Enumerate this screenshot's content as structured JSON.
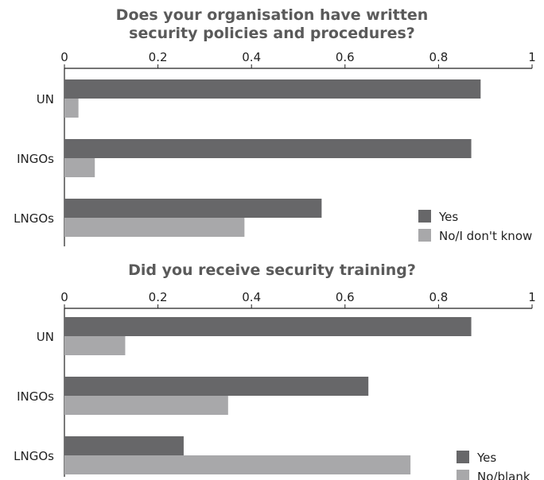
{
  "chart_data": [
    {
      "type": "bar",
      "orientation": "horizontal",
      "title_lines": [
        "Does your organisation have written",
        "security policies and procedures?"
      ],
      "categories": [
        "UN",
        "INGOs",
        "LNGOs"
      ],
      "series": [
        {
          "name": "Yes",
          "values": [
            0.89,
            0.87,
            0.55
          ],
          "color": "#676769"
        },
        {
          "name": "No/I don't know",
          "values": [
            0.03,
            0.065,
            0.385
          ],
          "color": "#a8a8aa"
        }
      ],
      "xlim": [
        0,
        1
      ],
      "xticks": [
        "0",
        "0.2",
        "0.4",
        "0.6",
        "0.8",
        "1"
      ],
      "xaxis_position": "top",
      "grid": false,
      "legend_position": "bottom-right"
    },
    {
      "type": "bar",
      "orientation": "horizontal",
      "title_lines": [
        "Did you receive security training?"
      ],
      "categories": [
        "UN",
        "INGOs",
        "LNGOs"
      ],
      "series": [
        {
          "name": "Yes",
          "values": [
            0.87,
            0.65,
            0.255
          ],
          "color": "#676769"
        },
        {
          "name": "No/blank",
          "values": [
            0.13,
            0.35,
            0.74
          ],
          "color": "#a8a8aa"
        }
      ],
      "xlim": [
        0,
        1
      ],
      "xticks": [
        "0",
        "0.2",
        "0.4",
        "0.6",
        "0.8",
        "1"
      ],
      "xaxis_position": "top",
      "grid": false,
      "legend_position": "bottom-right"
    }
  ]
}
